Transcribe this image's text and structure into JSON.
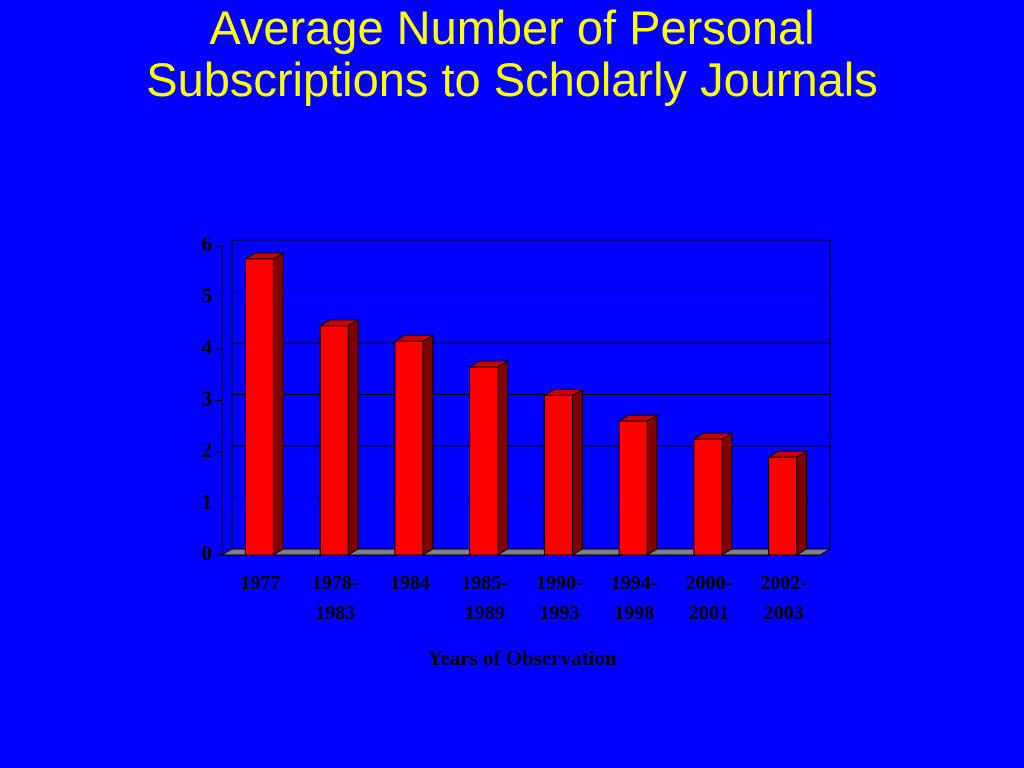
{
  "chart_data": {
    "type": "bar3d",
    "title": "Average Number of Personal Subscriptions to Scholarly Journals",
    "x_label": "Years of Observation",
    "categories": [
      "1977",
      "1978-\n1983",
      "1984",
      "1985-\n1989",
      "1990-\n1993",
      "1994-\n1998",
      "2000-\n2001",
      "2002-\n2003"
    ],
    "values": [
      5.75,
      4.45,
      4.15,
      3.65,
      3.1,
      2.6,
      2.25,
      1.9
    ],
    "color": "#ff0000",
    "ylim": [
      0,
      6
    ],
    "yticks": [
      0,
      1,
      2,
      3,
      4,
      5,
      6
    ],
    "grid": true
  }
}
